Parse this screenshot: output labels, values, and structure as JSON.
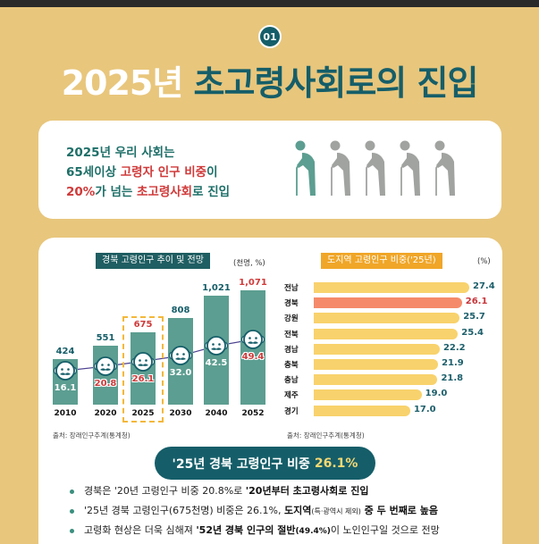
{
  "header": {
    "badge": "01",
    "title_white": "2025년",
    "title_teal": "초고령사회로의 진입"
  },
  "intro": {
    "line1": "2025년 우리 사회는",
    "line2_a": "65세이상 ",
    "line2_b": "고령자 인구 비중",
    "line2_c": "이",
    "line3_a": "20%",
    "line3_b": "가 넘는 ",
    "line3_c": "초고령사회",
    "line3_d": "로 진입",
    "figures": {
      "count": 5,
      "highlighted_index": 0,
      "highlight_color": "#5C9E91",
      "default_color": "#A0A3A0"
    }
  },
  "left_chart": {
    "label": "경북 고령인구 추이 및 전망",
    "unit": "(천명, %)",
    "source": "출처: 장래인구추계(통계청)"
  },
  "right_chart": {
    "label": "도지역 고령인구 비중('25년)",
    "unit": "(%)",
    "source": "출처: 장래인구추계(통계청)"
  },
  "chart_data": [
    {
      "type": "bar",
      "title": "경북 고령인구 추이 및 전망",
      "unit": "(천명, %)",
      "categories": [
        "2010",
        "2020",
        "2025",
        "2030",
        "2040",
        "2052"
      ],
      "series": [
        {
          "name": "고령인구(천명)",
          "values": [
            424,
            551,
            675,
            808,
            1021,
            1071
          ],
          "labels": [
            "424",
            "551",
            "675",
            "808",
            "1,021",
            "1,071"
          ]
        },
        {
          "name": "고령인구 비중(%)",
          "values": [
            16.1,
            20.8,
            26.1,
            32.0,
            42.5,
            49.4
          ],
          "labels": [
            "16.1",
            "20.8",
            "26.1",
            "32.0",
            "42.5",
            "49.4"
          ],
          "render": "line"
        }
      ],
      "highlight": "2025",
      "red_labels": {
        "count": [
          "675",
          "1,071"
        ],
        "pct": [
          "20.8",
          "26.1",
          "49.4"
        ]
      },
      "source": "출처: 장래인구추계(통계청)"
    },
    {
      "type": "bar",
      "orientation": "horizontal",
      "title": "도지역 고령인구 비중('25년)",
      "unit": "(%)",
      "categories": [
        "전남",
        "경북",
        "강원",
        "전북",
        "경남",
        "충북",
        "충남",
        "제주",
        "경기"
      ],
      "values": [
        27.4,
        26.1,
        25.7,
        25.4,
        22.2,
        21.9,
        21.8,
        19.0,
        17.0
      ],
      "labels": [
        "27.4",
        "26.1",
        "25.7",
        "25.4",
        "22.2",
        "21.9",
        "21.8",
        "19.0",
        "17.0"
      ],
      "highlight": "경북",
      "colors": {
        "default": "#F8D26C",
        "highlight": "#F58A6A"
      },
      "source": "출처: 장래인구추계(통계청)"
    }
  ],
  "summary": {
    "pill_text": "'25년 경북 고령인구 비중",
    "pill_value": "26.1%",
    "bullets": [
      {
        "a": "경북은 '20년 고령인구 비중 20.8%로 ",
        "b": "'20년부터 초고령사회로 진입"
      },
      {
        "a": "'25년 경북 고령인구(675천명) 비중은 26.1%, ",
        "b": "도지역",
        "c": "(특·광역시 제외)",
        "d": " 중 두 번째로 높음"
      },
      {
        "a": "고령화 현상은 더욱 심해져 ",
        "b": "'52년 경북 인구의 절반",
        "c": "(49.4%)",
        "d": "이 노인인구일 것으로 전망"
      }
    ]
  },
  "colors": {
    "background": "#E8C67C",
    "teal_dark": "#155E69",
    "teal_bar": "#5C9E91",
    "red": "#D03A3A",
    "yellow_bar": "#F8D26C",
    "orange_label": "#F0A628"
  }
}
